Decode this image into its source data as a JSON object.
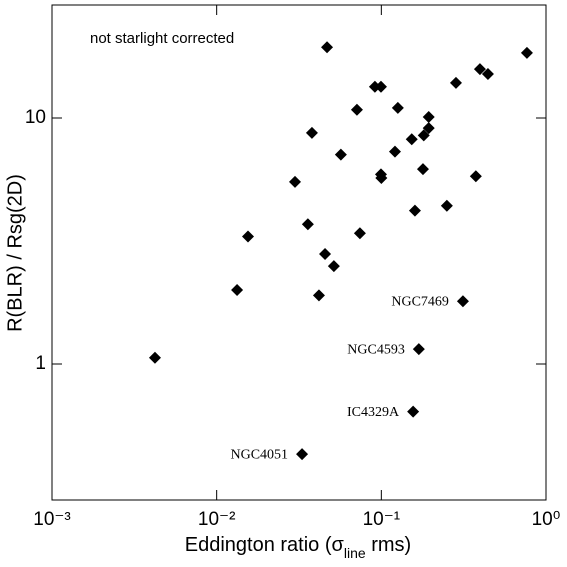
{
  "chart_data": {
    "type": "scatter",
    "xlog": true,
    "ylog": true,
    "color": "#000000",
    "xlabel": [
      "Eddington ratio (σ",
      "line",
      " rms)"
    ],
    "ylabel": "R(BLR) / Rsg(2D)",
    "annotation": "not starlight corrected",
    "xlim": [
      0.001,
      1
    ],
    "ylim": [
      0.28,
      28.8
    ],
    "xticks": [
      {
        "value": 0.001,
        "label": "10⁻³"
      },
      {
        "value": 0.01,
        "label": "10⁻²"
      },
      {
        "value": 0.1,
        "label": "10⁻¹"
      },
      {
        "value": 1,
        "label": "10⁰"
      }
    ],
    "yticks": [
      1,
      10
    ],
    "x": [
      0.0468,
      0.766,
      0.0914,
      0.0995,
      0.284,
      0.397,
      0.444,
      0.0711,
      0.126,
      0.194,
      0.194,
      0.181,
      0.153,
      0.0379,
      0.121,
      0.0568,
      0.179,
      0.0995,
      0.1,
      0.375,
      0.0299,
      0.25,
      0.16,
      0.0358,
      0.0155,
      0.0741,
      0.0455,
      0.0515,
      0.0133,
      0.0418,
      0.00422,
      0.313,
      0.169,
      0.156,
      0.033
    ],
    "values": [
      19.4,
      18.4,
      13.4,
      13.4,
      13.9,
      15.8,
      15.1,
      10.8,
      11.0,
      10.1,
      9.1,
      8.5,
      8.2,
      8.7,
      7.3,
      7.1,
      6.2,
      5.9,
      5.7,
      5.8,
      5.5,
      4.4,
      4.2,
      3.7,
      3.3,
      3.4,
      2.8,
      2.5,
      2.0,
      1.9,
      1.06,
      1.8,
      1.15,
      0.64,
      0.43
    ],
    "point_labels": [
      null,
      null,
      null,
      null,
      null,
      null,
      null,
      null,
      null,
      null,
      null,
      null,
      null,
      null,
      null,
      null,
      null,
      null,
      null,
      null,
      null,
      null,
      null,
      null,
      null,
      null,
      null,
      null,
      null,
      null,
      null,
      "NGC7469",
      "NGC4593",
      "IC4329A",
      "NGC4051"
    ]
  }
}
